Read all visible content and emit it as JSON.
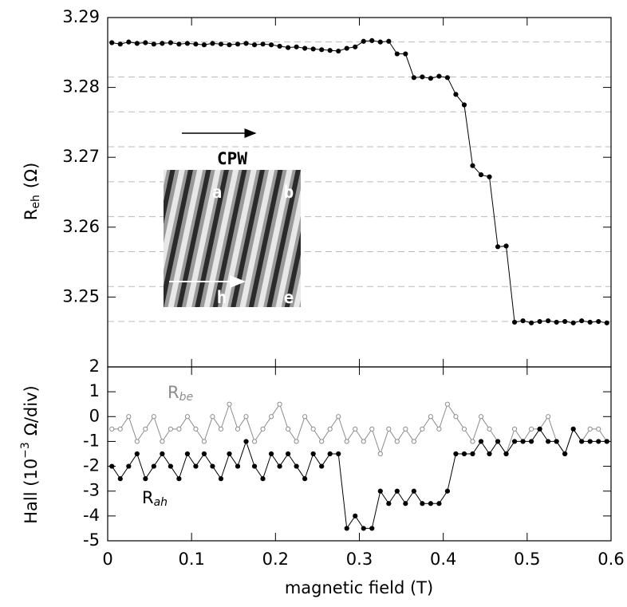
{
  "chart_data": [
    {
      "type": "line",
      "ylabel_main": "R",
      "ylabel_sub": "eh",
      "ylabel_unit": "(Ω)",
      "xlim": [
        0,
        0.6
      ],
      "xticks": [
        0,
        0.1,
        0.2,
        0.3,
        0.4,
        0.5,
        0.6
      ],
      "ylim": [
        3.24,
        3.29
      ],
      "yticks": [
        3.25,
        3.26,
        3.27,
        3.28,
        3.29
      ],
      "reference_lines": [
        3.2865,
        3.2815,
        3.2765,
        3.2715,
        3.2665,
        3.2615,
        3.2565,
        3.2515,
        3.2465
      ],
      "inset_label": "CPW",
      "inset_points": [
        "a",
        "b",
        "h",
        "e"
      ],
      "x": [
        0.005,
        0.015,
        0.025,
        0.035,
        0.045,
        0.055,
        0.065,
        0.075,
        0.085,
        0.095,
        0.105,
        0.115,
        0.125,
        0.135,
        0.145,
        0.155,
        0.165,
        0.175,
        0.185,
        0.195,
        0.205,
        0.215,
        0.225,
        0.235,
        0.245,
        0.255,
        0.265,
        0.275,
        0.285,
        0.295,
        0.305,
        0.315,
        0.325,
        0.335,
        0.345,
        0.355,
        0.365,
        0.375,
        0.385,
        0.395,
        0.405,
        0.415,
        0.425,
        0.435,
        0.445,
        0.455,
        0.465,
        0.475,
        0.485,
        0.495,
        0.505,
        0.515,
        0.525,
        0.535,
        0.545,
        0.555,
        0.565,
        0.575,
        0.585,
        0.595
      ],
      "series": [
        {
          "color": "#000000",
          "marker": "filled",
          "values": [
            3.2864,
            3.2862,
            3.2865,
            3.2863,
            3.2864,
            3.2862,
            3.2863,
            3.2864,
            3.2862,
            3.2863,
            3.2862,
            3.2861,
            3.2863,
            3.2862,
            3.2861,
            3.2862,
            3.2863,
            3.2861,
            3.2862,
            3.2861,
            3.2859,
            3.2857,
            3.2858,
            3.2856,
            3.2855,
            3.2854,
            3.2853,
            3.2852,
            3.2856,
            3.2858,
            3.2866,
            3.2867,
            3.2865,
            3.2866,
            3.2848,
            3.2848,
            3.2814,
            3.2815,
            3.2813,
            3.2816,
            3.2814,
            3.279,
            3.2775,
            3.2688,
            3.2675,
            3.2672,
            3.2572,
            3.2573,
            3.2464,
            3.2466,
            3.2463,
            3.2465,
            3.2466,
            3.2464,
            3.2465,
            3.2463,
            3.2466,
            3.2464,
            3.2465,
            3.2463
          ]
        }
      ]
    },
    {
      "type": "line",
      "xlabel": "magnetic field (T)",
      "ylabel_main": "Hall (10",
      "ylabel_sup": "−3",
      "ylabel_unit": "Ω/div)",
      "xlim": [
        0,
        0.6
      ],
      "xticks": [
        0,
        0.1,
        0.2,
        0.3,
        0.4,
        0.5,
        0.6
      ],
      "ylim": [
        -5,
        2
      ],
      "yticks": [
        -5,
        -4,
        -3,
        -2,
        -1,
        0,
        1,
        2
      ],
      "x": [
        0.005,
        0.015,
        0.025,
        0.035,
        0.045,
        0.055,
        0.065,
        0.075,
        0.085,
        0.095,
        0.105,
        0.115,
        0.125,
        0.135,
        0.145,
        0.155,
        0.165,
        0.175,
        0.185,
        0.195,
        0.205,
        0.215,
        0.225,
        0.235,
        0.245,
        0.255,
        0.265,
        0.275,
        0.285,
        0.295,
        0.305,
        0.315,
        0.325,
        0.335,
        0.345,
        0.355,
        0.365,
        0.375,
        0.385,
        0.395,
        0.405,
        0.415,
        0.425,
        0.435,
        0.445,
        0.455,
        0.465,
        0.475,
        0.485,
        0.495,
        0.505,
        0.515,
        0.525,
        0.535,
        0.545,
        0.555,
        0.565,
        0.575,
        0.585,
        0.595
      ],
      "series": [
        {
          "name": "R",
          "name_sub": "be",
          "color": "#8c8c8c",
          "marker": "open",
          "values": [
            -0.5,
            -0.5,
            0,
            -1,
            -0.5,
            0,
            -1,
            -0.5,
            -0.5,
            0,
            -0.5,
            -1,
            0,
            -0.5,
            0.5,
            -0.5,
            0,
            -1,
            -0.5,
            0,
            0.5,
            -0.5,
            -1,
            0,
            -0.5,
            -1,
            -0.5,
            0,
            -1,
            -0.5,
            -1,
            -0.5,
            -1.5,
            -0.5,
            -1,
            -0.5,
            -1,
            -0.5,
            0,
            -0.5,
            0.5,
            0,
            -0.5,
            -1,
            0,
            -0.5,
            -1,
            -1.5,
            -0.5,
            -1,
            -0.5,
            -0.5,
            0,
            -1,
            -1.5,
            -0.5,
            -1,
            -0.5,
            -0.5,
            -1
          ]
        },
        {
          "name": "R",
          "name_sub": "ah",
          "color": "#000000",
          "marker": "filled",
          "values": [
            -2,
            -2.5,
            -2,
            -1.5,
            -2.5,
            -2,
            -1.5,
            -2,
            -2.5,
            -1.5,
            -2,
            -1.5,
            -2,
            -2.5,
            -1.5,
            -2,
            -1,
            -2,
            -2.5,
            -1.5,
            -2,
            -1.5,
            -2,
            -2.5,
            -1.5,
            -2,
            -1.5,
            -1.5,
            -4.5,
            -4,
            -4.5,
            -4.5,
            -3,
            -3.5,
            -3,
            -3.5,
            -3,
            -3.5,
            -3.5,
            -3.5,
            -3,
            -1.5,
            -1.5,
            -1.5,
            -1,
            -1.5,
            -1,
            -1.5,
            -1,
            -1,
            -1,
            -0.5,
            -1,
            -1,
            -1.5,
            -0.5,
            -1,
            -1,
            -1,
            -1
          ]
        }
      ]
    }
  ]
}
